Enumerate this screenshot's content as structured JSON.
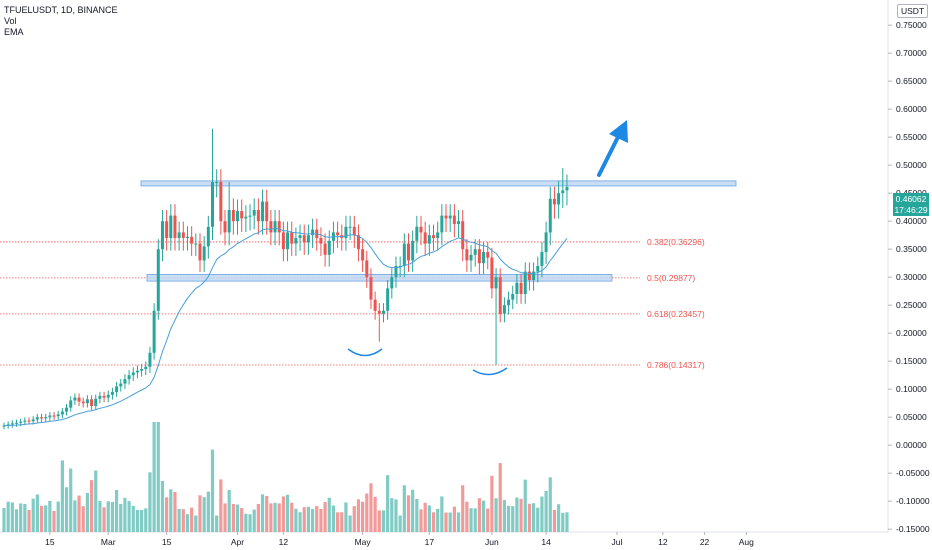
{
  "header": {
    "symbol_line": "TFUELUSDT, 1D, BINANCE",
    "indicators": [
      "Vol",
      "EMA"
    ]
  },
  "price_scale": {
    "currency": "USDT",
    "current_price": "0.46062",
    "countdown": "17:46:29"
  },
  "colors": {
    "up": "#26a69a",
    "down": "#ef5350",
    "volume_up": "#80cbc4",
    "volume_down": "#f29a99",
    "ema": "#4a9fd8",
    "zone_fill": "#bbd6f3",
    "zone_stroke": "#6ea3e4",
    "fib": "#ef5350",
    "annotation": "#1e88e5",
    "axis_text": "#131722"
  },
  "chart_data": {
    "type": "candlestick",
    "ylim": [
      -0.155,
      0.795
    ],
    "y_ticks": [
      0.75,
      0.7,
      0.65,
      0.6,
      0.55,
      0.5,
      0.45,
      0.4,
      0.35,
      0.3,
      0.25,
      0.2,
      0.15,
      0.1,
      0.05,
      0.0,
      -0.05,
      -0.1,
      -0.15
    ],
    "y_tick_labels": [
      "0.75000",
      "0.70000",
      "0.65000",
      "0.60000",
      "0.55000",
      "0.50000",
      "0.45000",
      "0.40000",
      "0.35000",
      "0.30000",
      "0.25000",
      "0.20000",
      "0.15000",
      "0.10000",
      "0.05000",
      "0.00000",
      "-0.05000",
      "-0.10000",
      "-0.15000"
    ],
    "x_ticks": [
      {
        "label": "15",
        "date": "2021-02-15"
      },
      {
        "label": "Mar",
        "date": "2021-03-01"
      },
      {
        "label": "15",
        "date": "2021-03-15"
      },
      {
        "label": "Apr",
        "date": "2021-04-01"
      },
      {
        "label": "12",
        "date": "2021-04-12"
      },
      {
        "label": "May",
        "date": "2021-05-01"
      },
      {
        "label": "17",
        "date": "2021-05-17"
      },
      {
        "label": "Jun",
        "date": "2021-06-01"
      },
      {
        "label": "14",
        "date": "2021-06-14"
      },
      {
        "label": "Jul",
        "date": "2021-07-01"
      },
      {
        "label": "12",
        "date": "2021-07-12"
      },
      {
        "label": "22",
        "date": "2021-07-22"
      },
      {
        "label": "Aug",
        "date": "2021-08-01"
      }
    ],
    "fib_levels": [
      {
        "label": "0.382(0.36296)",
        "value": 0.36296
      },
      {
        "label": "0.5(0.29877)",
        "value": 0.29877
      },
      {
        "label": "0.618(0.23457)",
        "value": 0.23457
      },
      {
        "label": "0.786(0.14317)",
        "value": 0.14317
      }
    ],
    "resistance_zone": [
      0.463,
      0.472
    ],
    "support_zone": [
      0.293,
      0.305
    ],
    "close_series": [
      0.035,
      0.037,
      0.039,
      0.04,
      0.042,
      0.044,
      0.043,
      0.046,
      0.05,
      0.048,
      0.05,
      0.053,
      0.052,
      0.055,
      0.06,
      0.067,
      0.08,
      0.085,
      0.078,
      0.075,
      0.082,
      0.07,
      0.083,
      0.088,
      0.085,
      0.09,
      0.095,
      0.105,
      0.11,
      0.118,
      0.125,
      0.13,
      0.133,
      0.136,
      0.14,
      0.165,
      0.24,
      0.35,
      0.4,
      0.37,
      0.41,
      0.37,
      0.38,
      0.37,
      0.372,
      0.36,
      0.36,
      0.33,
      0.355,
      0.39,
      0.47,
      0.47,
      0.4,
      0.38,
      0.42,
      0.4,
      0.418,
      0.405,
      0.408,
      0.41,
      0.42,
      0.4,
      0.435,
      0.4,
      0.38,
      0.4,
      0.38,
      0.35,
      0.38,
      0.36,
      0.37,
      0.375,
      0.362,
      0.375,
      0.385,
      0.37,
      0.36,
      0.34,
      0.365,
      0.38,
      0.375,
      0.37,
      0.39,
      0.39,
      0.375,
      0.35,
      0.33,
      0.3,
      0.26,
      0.24,
      0.235,
      0.24,
      0.28,
      0.3,
      0.32,
      0.32,
      0.36,
      0.33,
      0.365,
      0.39,
      0.38,
      0.36,
      0.375,
      0.37,
      0.38,
      0.41,
      0.405,
      0.41,
      0.395,
      0.4,
      0.35,
      0.33,
      0.34,
      0.35,
      0.325,
      0.345,
      0.335,
      0.28,
      0.3,
      0.235,
      0.25,
      0.26,
      0.27,
      0.29,
      0.27,
      0.31,
      0.295,
      0.31,
      0.32,
      0.345,
      0.38,
      0.44,
      0.43,
      0.45,
      0.455,
      0.461
    ],
    "volume_note": "relative volume bars rise from the bottom of the chart"
  },
  "annotations": {
    "arrow": "up-right-arrow",
    "arcs": [
      "bottom-arc-left",
      "bottom-arc-right"
    ]
  }
}
